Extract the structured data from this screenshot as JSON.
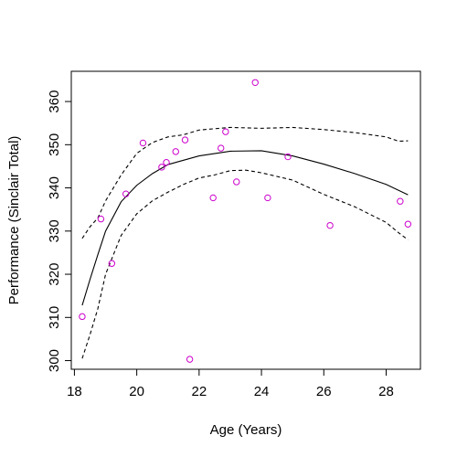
{
  "chart_data": {
    "type": "scatter",
    "title": "",
    "xlabel": "Age (Years)",
    "ylabel": "Performance (Sinclair Total)",
    "xlim": [
      17.9,
      29.1
    ],
    "ylim": [
      298,
      367
    ],
    "xticks": [
      18,
      20,
      22,
      24,
      26,
      28
    ],
    "yticks": [
      300,
      310,
      320,
      330,
      340,
      350,
      360
    ],
    "grid": false,
    "legend": "none",
    "colors": {
      "points": "#cc00cc",
      "lines": "#000000"
    },
    "series": [
      {
        "type": "scatter",
        "x": [
          18.25,
          18.85,
          19.2,
          19.65,
          20.2,
          20.8,
          20.95,
          21.25,
          21.55,
          21.7,
          22.45,
          22.7,
          22.85,
          23.2,
          23.8,
          24.2,
          24.85,
          26.2,
          28.45,
          28.7
        ],
        "y": [
          310.2,
          332.8,
          322.5,
          338.6,
          350.4,
          344.8,
          345.9,
          348.4,
          351.1,
          300.3,
          337.7,
          349.2,
          353.0,
          341.4,
          364.4,
          337.7,
          347.2,
          331.3,
          336.9,
          331.6
        ]
      },
      {
        "type": "line",
        "style": "solid",
        "x": [
          18.25,
          18.5,
          18.75,
          19.0,
          19.5,
          20.0,
          20.5,
          21.0,
          22.0,
          23.0,
          24.0,
          25.0,
          26.0,
          27.0,
          28.0,
          28.7
        ],
        "y": [
          312.8,
          318.8,
          324.5,
          330.0,
          336.8,
          340.6,
          343.3,
          345.4,
          347.4,
          348.5,
          348.6,
          347.4,
          345.5,
          343.3,
          340.8,
          338.4
        ]
      },
      {
        "type": "line",
        "style": "dashed",
        "x": [
          18.25,
          18.5,
          18.75,
          19.0,
          19.5,
          20.0,
          20.5,
          21.0,
          21.5,
          22.0,
          23.0,
          24.0,
          25.0,
          26.0,
          27.0,
          28.0,
          28.4,
          28.7
        ],
        "y": [
          328.3,
          331.0,
          333.0,
          337.0,
          343.0,
          348.0,
          350.5,
          351.8,
          352.3,
          353.4,
          354.0,
          353.8,
          354.0,
          353.5,
          352.8,
          351.8,
          350.8,
          350.9
        ]
      },
      {
        "type": "line",
        "style": "dashed",
        "x": [
          18.25,
          18.5,
          18.75,
          19.0,
          19.5,
          20.0,
          20.5,
          21.0,
          21.5,
          22.0,
          22.5,
          23.0,
          23.5,
          24.0,
          25.0,
          26.0,
          27.0,
          28.0,
          28.4,
          28.7
        ],
        "y": [
          300.5,
          306.0,
          312.0,
          320.0,
          329.0,
          334.0,
          337.0,
          339.0,
          340.8,
          342.3,
          343.0,
          344.0,
          344.1,
          343.5,
          341.8,
          338.5,
          335.6,
          332.0,
          329.6,
          328.0
        ]
      }
    ]
  }
}
